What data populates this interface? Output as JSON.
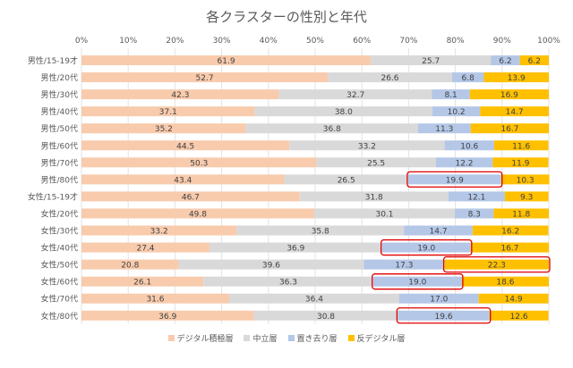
{
  "chart_data": {
    "type": "bar",
    "orientation": "horizontal",
    "stacked": true,
    "percent": true,
    "title": "各クラスターの性別と年代",
    "xlabel": "",
    "ylabel": "",
    "xlim": [
      0,
      100
    ],
    "x_ticks": [
      "0%",
      "10%",
      "20%",
      "30%",
      "40%",
      "50%",
      "60%",
      "70%",
      "80%",
      "90%",
      "100%"
    ],
    "grid": true,
    "legend_position": "bottom",
    "categories": [
      "男性/15-19才",
      "男性/20代",
      "男性/30代",
      "男性/40代",
      "男性/50代",
      "男性/60代",
      "男性/70代",
      "男性/80代",
      "女性/15-19才",
      "女性/20代",
      "女性/30代",
      "女性/40代",
      "女性/50代",
      "女性/60代",
      "女性/70代",
      "女性/80代"
    ],
    "series": [
      {
        "name": "デジタル積極層",
        "color": "#f8cbad",
        "values": [
          61.9,
          52.7,
          42.3,
          37.1,
          35.2,
          44.5,
          50.3,
          43.4,
          46.7,
          49.8,
          33.2,
          27.4,
          20.8,
          26.1,
          31.6,
          36.9
        ]
      },
      {
        "name": "中立層",
        "color": "#d9d9d9",
        "values": [
          25.7,
          26.6,
          32.7,
          38.0,
          36.8,
          33.2,
          25.5,
          26.5,
          31.8,
          30.1,
          35.8,
          36.9,
          39.6,
          36.3,
          36.4,
          30.8
        ]
      },
      {
        "name": "置き去り層",
        "color": "#b4c7e7",
        "values": [
          6.2,
          6.8,
          8.1,
          10.2,
          11.3,
          10.6,
          12.2,
          19.9,
          12.1,
          8.3,
          14.7,
          19.0,
          17.3,
          19.0,
          17.0,
          19.6
        ]
      },
      {
        "name": "反デジタル層",
        "color": "#ffc000",
        "values": [
          6.2,
          13.9,
          16.9,
          14.7,
          16.7,
          11.6,
          11.9,
          10.3,
          9.3,
          11.8,
          16.2,
          16.7,
          22.3,
          18.6,
          14.9,
          12.6
        ]
      }
    ],
    "highlights": [
      {
        "category": "男性/80代",
        "series": "置き去り層",
        "color": "#e00000"
      },
      {
        "category": "女性/40代",
        "series": "置き去り層",
        "color": "#e00000"
      },
      {
        "category": "女性/50代",
        "series": "反デジタル層",
        "color": "#e00000"
      },
      {
        "category": "女性/60代",
        "series": "置き去り層",
        "color": "#e00000"
      },
      {
        "category": "女性/80代",
        "series": "置き去り層",
        "color": "#e00000"
      }
    ]
  }
}
